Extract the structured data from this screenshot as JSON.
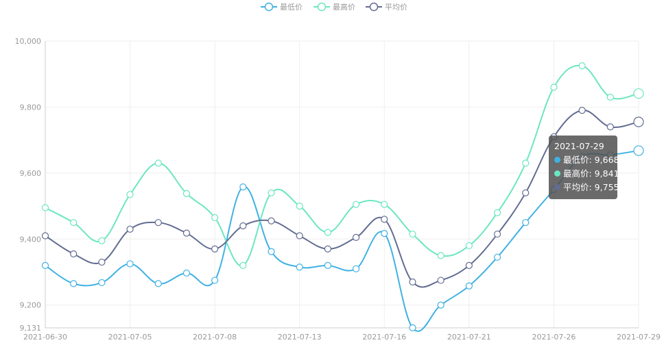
{
  "chart_data": {
    "type": "line",
    "categories": [
      "2021-06-30",
      "2021-07-01",
      "2021-07-02",
      "2021-07-05",
      "2021-07-06",
      "2021-07-07",
      "2021-07-08",
      "2021-07-09",
      "2021-07-12",
      "2021-07-13",
      "2021-07-14",
      "2021-07-15",
      "2021-07-16",
      "2021-07-19",
      "2021-07-20",
      "2021-07-21",
      "2021-07-22",
      "2021-07-23",
      "2021-07-26",
      "2021-07-27",
      "2021-07-28",
      "2021-07-29"
    ],
    "x_tick_labels": [
      "2021-06-30",
      "2021-07-05",
      "2021-07-08",
      "2021-07-13",
      "2021-07-16",
      "2021-07-21",
      "2021-07-26",
      "2021-07-29"
    ],
    "y_ticks": [
      "9,131",
      "9,200",
      "9,400",
      "9,600",
      "9,800",
      "10,000"
    ],
    "ylim": [
      9131,
      10000
    ],
    "y_tick_values": [
      9131,
      9200,
      9400,
      9600,
      9800,
      10000
    ],
    "series": [
      {
        "name": "最低价",
        "color": "#3fb1e3",
        "values": [
          9320,
          9265,
          9268,
          9325,
          9265,
          9297,
          9275,
          9558,
          9362,
          9315,
          9320,
          9310,
          9417,
          9131,
          9200,
          9258,
          9345,
          9450,
          9550,
          9650,
          9655,
          9668
        ]
      },
      {
        "name": "最高价",
        "color": "#6be6c1",
        "values": [
          9495,
          9450,
          9395,
          9535,
          9630,
          9538,
          9465,
          9320,
          9540,
          9500,
          9420,
          9505,
          9505,
          9415,
          9350,
          9380,
          9480,
          9630,
          9860,
          9925,
          9830,
          9841
        ]
      },
      {
        "name": "平均价",
        "color": "#626c91",
        "values": [
          9410,
          9355,
          9330,
          9430,
          9450,
          9418,
          9370,
          9440,
          9455,
          9410,
          9370,
          9405,
          9460,
          9270,
          9275,
          9320,
          9415,
          9540,
          9710,
          9790,
          9740,
          9755
        ]
      }
    ],
    "legend_position": "top-center",
    "grid": true
  },
  "tooltip": {
    "date": "2021-07-29",
    "rows": [
      {
        "label": "最低价: 9,668",
        "color": "#3fb1e3"
      },
      {
        "label": "最高价: 9,841",
        "color": "#6be6c1"
      },
      {
        "label": "平均价: 9,755",
        "color": "#626c91"
      }
    ]
  }
}
